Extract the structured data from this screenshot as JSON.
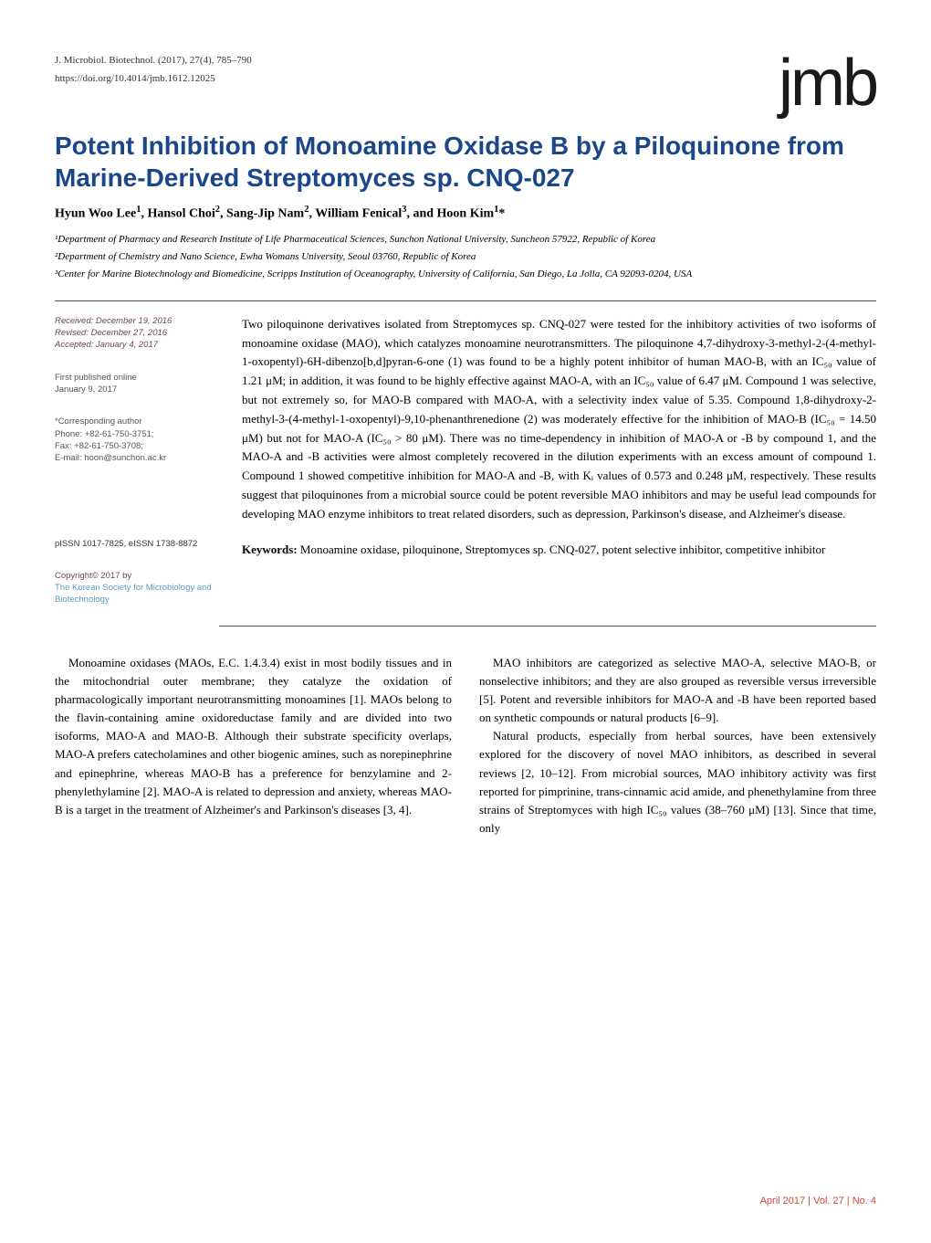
{
  "meta": {
    "citation": "J. Microbiol. Biotechnol. (2017), 27(4), 785–790",
    "doi": "https://doi.org/10.4014/jmb.1612.12025",
    "logo": "jmb"
  },
  "article": {
    "title": "Potent Inhibition of Monoamine Oxidase B by a Piloquinone from Marine-Derived Streptomyces sp. CNQ-027",
    "authors_html": "Hyun Woo Lee<sup>1</sup>, Hansol Choi<sup>2</sup>, Sang-Jip Nam<sup>2</sup>, William Fenical<sup>3</sup>, and Hoon Kim<sup>1</sup>*",
    "affiliations": [
      "¹Department of Pharmacy and Research Institute of Life Pharmaceutical Sciences, Sunchon National University, Suncheon 57922, Republic of Korea",
      "²Department of Chemistry and Nano Science, Ewha Womans University, Seoul 03760, Republic of Korea",
      "³Center for Marine Biotechnology and Biomedicine, Scripps Institution of Oceanography, University of California, San Diego, La Jolla, CA 92093-0204, USA"
    ]
  },
  "sidebar": {
    "received": "Received: December 19, 2016",
    "revised": "Revised: December 27, 2016",
    "accepted": "Accepted: January 4, 2017",
    "first_published": "First published online",
    "first_published_date": "January 9, 2017",
    "corresponding": "*Corresponding author",
    "phone": "Phone: +82-61-750-3751;",
    "fax": "Fax: +82-61-750-3708;",
    "email": "E-mail: hoon@sunchon.ac.kr",
    "pissn": "pISSN 1017-7825, eISSN 1738-8872",
    "copyright": "Copyright© 2017 by",
    "society": "The Korean Society for Microbiology and Biotechnology"
  },
  "abstract": {
    "text": "Two piloquinone derivatives isolated from Streptomyces sp. CNQ-027 were tested for the inhibitory activities of two isoforms of monoamine oxidase (MAO), which catalyzes monoamine neurotransmitters. The piloquinone 4,7-dihydroxy-3-methyl-2-(4-methyl-1-oxopentyl)-6H-dibenzo[b,d]pyran-6-one (1) was found to be a highly potent inhibitor of human MAO-B, with an IC₅₀ value of 1.21 μM; in addition, it was found to be highly effective against MAO-A, with an IC₅₀ value of 6.47 μM. Compound 1 was selective, but not extremely so, for MAO-B compared with MAO-A, with a selectivity index value of 5.35. Compound 1,8-dihydroxy-2-methyl-3-(4-methyl-1-oxopentyl)-9,10-phenanthrenedione (2) was moderately effective for the inhibition of MAO-B (IC₅₀ = 14.50 μM) but not for MAO-A (IC₅₀ > 80 μM). There was no time-dependency in inhibition of MAO-A or -B by compound 1, and the MAO-A and -B activities were almost completely recovered in the dilution experiments with an excess amount of compound 1. Compound 1 showed competitive inhibition for MAO-A and -B, with Kᵢ values of 0.573 and 0.248 μM, respectively. These results suggest that piloquinones from a microbial source could be potent reversible MAO inhibitors and may be useful lead compounds for developing MAO enzyme inhibitors to treat related disorders, such as depression, Parkinson's disease, and Alzheimer's disease.",
    "keywords_label": "Keywords:",
    "keywords_text": " Monoamine oxidase, piloquinone, Streptomyces sp. CNQ-027, potent selective inhibitor, competitive inhibitor"
  },
  "body": {
    "col1_p1": "Monoamine oxidases (MAOs, E.C. 1.4.3.4) exist in most bodily tissues and in the mitochondrial outer membrane; they catalyze the oxidation of pharmacologically important neurotransmitting monoamines [1]. MAOs belong to the flavin-containing amine oxidoreductase family and are divided into two isoforms, MAO-A and MAO-B. Although their substrate specificity overlaps, MAO-A prefers catecholamines and other biogenic amines, such as norepinephrine and epinephrine, whereas MAO-B has a preference for benzylamine and 2-phenylethylamine [2]. MAO-A is related to depression and anxiety, whereas MAO-B is a target in the treatment of Alzheimer's and Parkinson's diseases [3, 4].",
    "col2_p1": "MAO inhibitors are categorized as selective MAO-A, selective MAO-B, or nonselective inhibitors; and they are also grouped as reversible versus irreversible [5]. Potent and reversible inhibitors for MAO-A and -B have been reported based on synthetic compounds or natural products [6–9].",
    "col2_p2": "Natural products, especially from herbal sources, have been extensively explored for the discovery of novel MAO inhibitors, as described in several reviews [2, 10–12]. From microbial sources, MAO inhibitory activity was first reported for pimprinine, trans-cinnamic acid amide, and phenethylamine from three strains of Streptomyces with high IC₅₀ values (38–760 μM) [13]. Since that time, only"
  },
  "footer": {
    "text": "April 2017 | Vol. 27 | No. 4"
  },
  "styles": {
    "title_color": "#1b4788",
    "footer_color": "#c94a36",
    "society_color": "#5a9bc4",
    "background_color": "#ffffff",
    "body_font": "Times New Roman",
    "title_font": "sans-serif",
    "title_fontsize": 28,
    "body_fontsize": 13,
    "sidebar_fontsize": 9.5
  }
}
